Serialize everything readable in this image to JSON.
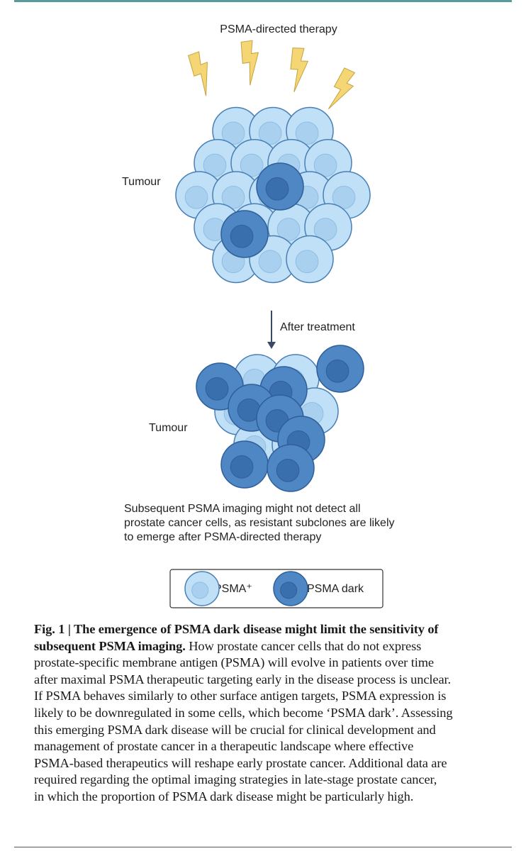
{
  "figure": {
    "therapy_label": "PSMA-directed therapy",
    "tumour_before_label": "Tumour",
    "arrow_label": "After treatment",
    "tumour_after_label": "Tumour",
    "note_lines": [
      "Subsequent PSMA imaging might not detect all",
      "prostate cancer cells, as resistant subclones are likely",
      "to emerge after PSMA-directed therapy"
    ],
    "legend": {
      "positive": "PSMA⁺",
      "dark": "PSMA dark"
    }
  },
  "caption": {
    "title_lines": [
      "Fig. 1 | The emergence of PSMA dark disease might limit the sensitivity of",
      "subsequent PSMA imaging."
    ],
    "body_lines": [
      "How prostate cancer cells that do not express",
      "prostate-specific membrane antigen (PSMA) will evolve in patients over time",
      "after maximal PSMA therapeutic targeting early in the disease process is unclear.",
      "If PSMA behaves similarly to other surface antigen targets, PSMA expression is",
      "likely to be downregulated in some cells, which become ‘PSMA dark’. Assessing",
      "this emerging PSMA dark disease will be crucial for clinical development and",
      "management of prostate cancer in a therapeutic landscape where effective",
      "PSMA-based therapeutics will reshape early prostate cancer. Additional data are",
      "required regarding the optimal imaging strategies in late-stage prostate cancer,",
      "in which the proportion of PSMA dark disease might be particularly high."
    ]
  }
}
